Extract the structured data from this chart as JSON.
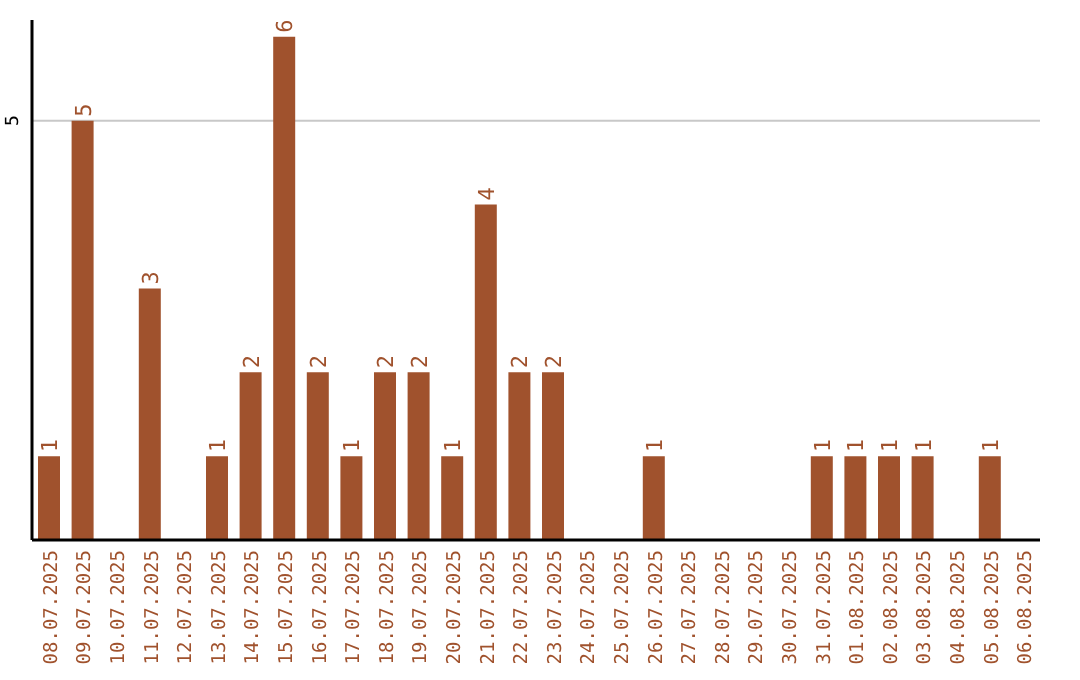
{
  "chart_data": {
    "type": "bar",
    "categories": [
      "08.07.2025",
      "09.07.2025",
      "10.07.2025",
      "11.07.2025",
      "12.07.2025",
      "13.07.2025",
      "14.07.2025",
      "15.07.2025",
      "16.07.2025",
      "17.07.2025",
      "18.07.2025",
      "19.07.2025",
      "20.07.2025",
      "21.07.2025",
      "22.07.2025",
      "23.07.2025",
      "24.07.2025",
      "25.07.2025",
      "26.07.2025",
      "27.07.2025",
      "28.07.2025",
      "29.07.2025",
      "30.07.2025",
      "31.07.2025",
      "01.08.2025",
      "02.08.2025",
      "03.08.2025",
      "04.08.2025",
      "05.08.2025",
      "06.08.2025"
    ],
    "values": [
      1,
      5,
      null,
      3,
      null,
      1,
      2,
      6,
      2,
      1,
      2,
      2,
      1,
      4,
      2,
      2,
      null,
      null,
      1,
      null,
      null,
      null,
      null,
      1,
      1,
      1,
      1,
      null,
      1,
      null
    ],
    "color": "#a0522d",
    "ylim": [
      0,
      6.2
    ],
    "yticks": [
      5
    ],
    "grid": "y",
    "data_labels": true
  }
}
